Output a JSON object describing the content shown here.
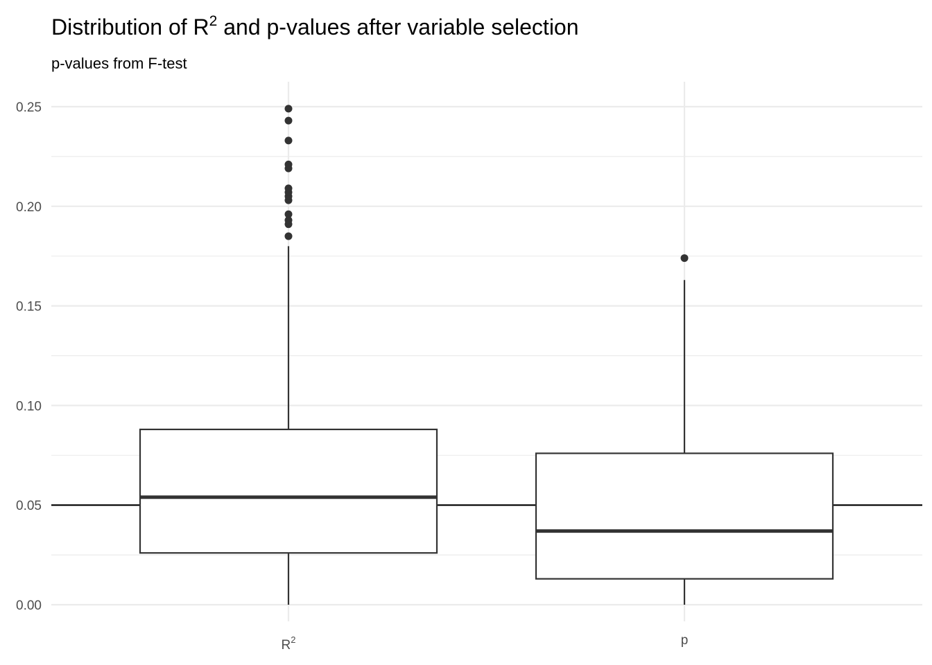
{
  "chart_data": {
    "type": "boxplot",
    "title": {
      "main": "Distribution of R",
      "sup": "2",
      "rest": " and p-values after variable selection"
    },
    "subtitle": "p-values from F-test",
    "xlabel": "",
    "ylabel": "",
    "ylim": [
      -0.01,
      0.262
    ],
    "y_ticks": [
      0.0,
      0.05,
      0.1,
      0.15,
      0.2,
      0.25
    ],
    "y_tick_labels": [
      "0.00",
      "0.05",
      "0.10",
      "0.15",
      "0.20",
      "0.25"
    ],
    "y_minor_ticks": [
      0.025,
      0.075,
      0.125,
      0.175,
      0.225
    ],
    "grid": true,
    "reference_line": 0.05,
    "categories": [
      {
        "label": "R",
        "sup": "2"
      },
      {
        "label": "p",
        "sup": ""
      }
    ],
    "boxes": [
      {
        "name": "R2",
        "min": 0.0,
        "q1": 0.026,
        "median": 0.054,
        "q3": 0.088,
        "max": 0.18,
        "outliers": [
          0.185,
          0.191,
          0.193,
          0.196,
          0.203,
          0.205,
          0.207,
          0.209,
          0.219,
          0.221,
          0.233,
          0.243,
          0.249
        ]
      },
      {
        "name": "p",
        "min": 0.0,
        "q1": 0.013,
        "median": 0.037,
        "q3": 0.076,
        "max": 0.163,
        "outliers": [
          0.174
        ]
      }
    ],
    "colors": {
      "box_line": "#333333",
      "median": "#333333",
      "outlier": "#333333",
      "grid": "#ebebeb",
      "ref_line": "#000000"
    }
  }
}
